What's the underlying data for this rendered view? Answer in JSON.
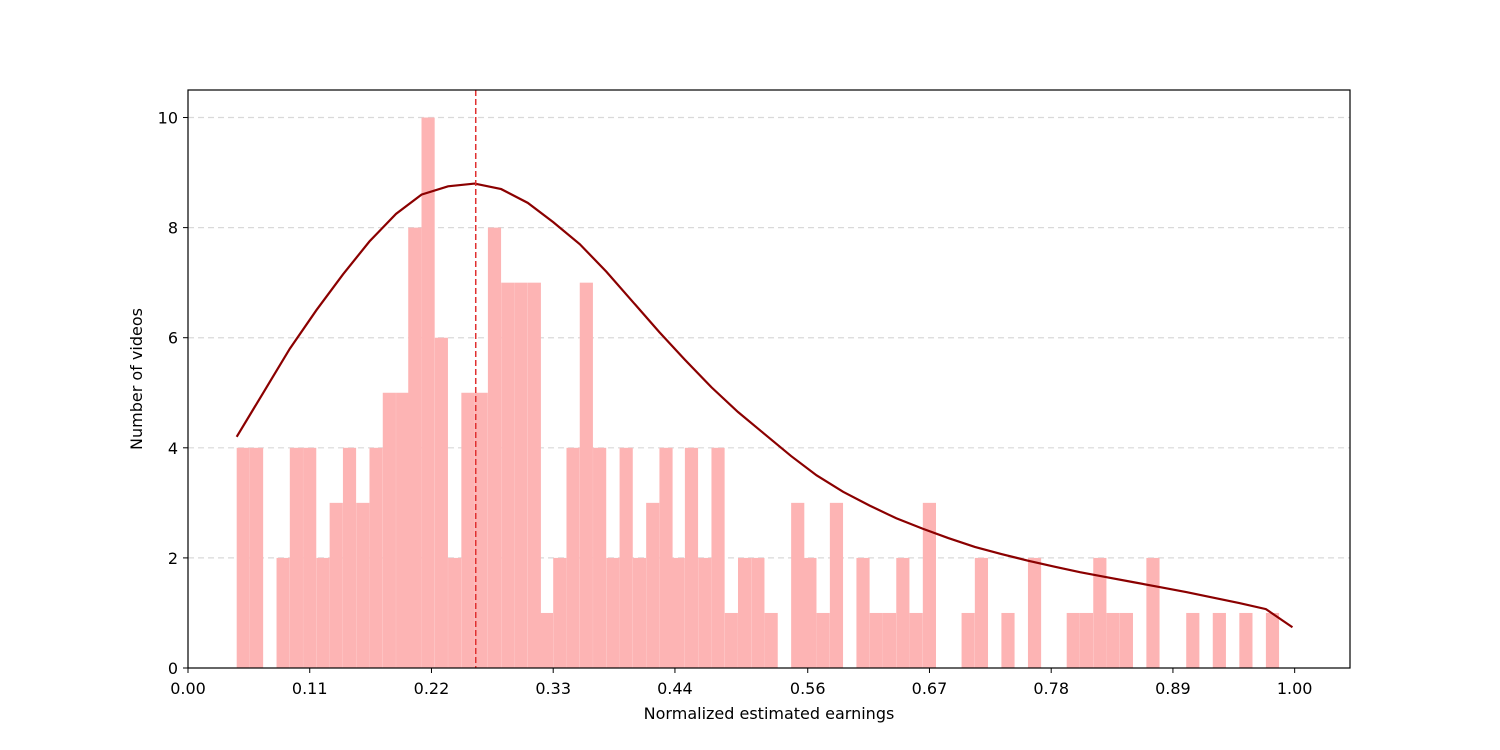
{
  "chart_data": {
    "type": "bar",
    "xlabel": "Normalized estimated earnings",
    "ylabel": "Number of videos",
    "xlim": [
      0.0,
      1.05
    ],
    "ylim": [
      0,
      10.5
    ],
    "xticks": [
      "0.00",
      "0.11",
      "0.22",
      "0.33",
      "0.44",
      "0.56",
      "0.67",
      "0.78",
      "0.89",
      "1.00"
    ],
    "yticks": [
      "0",
      "2",
      "4",
      "6",
      "8",
      "10"
    ],
    "grid": "horizontal dashed",
    "bin_width": 0.0119,
    "bar_color": "#fdb4b4",
    "bins_x": [
      0.044,
      0.056,
      0.068,
      0.08,
      0.092,
      0.104,
      0.116,
      0.128,
      0.14,
      0.152,
      0.164,
      0.176,
      0.188,
      0.199,
      0.211,
      0.223,
      0.235,
      0.247,
      0.259,
      0.271,
      0.283,
      0.295,
      0.307,
      0.318,
      0.33,
      0.342,
      0.354,
      0.366,
      0.378,
      0.39,
      0.402,
      0.414,
      0.426,
      0.437,
      0.449,
      0.461,
      0.473,
      0.485,
      0.497,
      0.509,
      0.521,
      0.533,
      0.545,
      0.556,
      0.568,
      0.58,
      0.592,
      0.604,
      0.616,
      0.628,
      0.64,
      0.652,
      0.664,
      0.675,
      0.687,
      0.699,
      0.711,
      0.723,
      0.735,
      0.747,
      0.759,
      0.771,
      0.783,
      0.794,
      0.806,
      0.818,
      0.83,
      0.842,
      0.854,
      0.866,
      0.878,
      0.89,
      0.902,
      0.914,
      0.926,
      0.938,
      0.95,
      0.962,
      0.974,
      0.986
    ],
    "bins_counts": [
      4,
      4,
      0,
      2,
      4,
      4,
      2,
      3,
      4,
      3,
      4,
      5,
      5,
      8,
      10,
      6,
      2,
      5,
      5,
      8,
      7,
      7,
      7,
      1,
      2,
      4,
      7,
      4,
      2,
      4,
      2,
      3,
      4,
      2,
      4,
      2,
      4,
      1,
      2,
      2,
      1,
      0,
      3,
      2,
      1,
      3,
      0,
      2,
      1,
      1,
      2,
      1,
      3,
      0,
      0,
      1,
      2,
      0,
      1,
      0,
      2,
      0,
      0,
      1,
      1,
      2,
      1,
      1,
      0,
      2,
      0,
      0,
      1,
      0,
      1,
      0,
      1,
      0,
      1,
      0
    ],
    "curve": {
      "color": "#8b0000",
      "x": [
        0.044,
        0.068,
        0.092,
        0.116,
        0.14,
        0.164,
        0.188,
        0.211,
        0.235,
        0.259,
        0.283,
        0.307,
        0.33,
        0.354,
        0.378,
        0.402,
        0.426,
        0.449,
        0.473,
        0.497,
        0.521,
        0.545,
        0.568,
        0.592,
        0.616,
        0.64,
        0.664,
        0.687,
        0.711,
        0.735,
        0.759,
        0.783,
        0.806,
        0.83,
        0.854,
        0.878,
        0.902,
        0.926,
        0.95,
        0.974,
        0.998
      ],
      "y": [
        4.2,
        5.0,
        5.8,
        6.5,
        7.15,
        7.75,
        8.25,
        8.6,
        8.75,
        8.8,
        8.7,
        8.45,
        8.1,
        7.7,
        7.2,
        6.65,
        6.1,
        5.6,
        5.1,
        4.65,
        4.25,
        3.85,
        3.5,
        3.2,
        2.95,
        2.72,
        2.53,
        2.36,
        2.2,
        2.07,
        1.95,
        1.84,
        1.74,
        1.65,
        1.56,
        1.47,
        1.38,
        1.28,
        1.18,
        1.07,
        0.74
      ]
    },
    "vline": {
      "x": 0.26,
      "color": "#e03030",
      "style": "dashed"
    }
  }
}
